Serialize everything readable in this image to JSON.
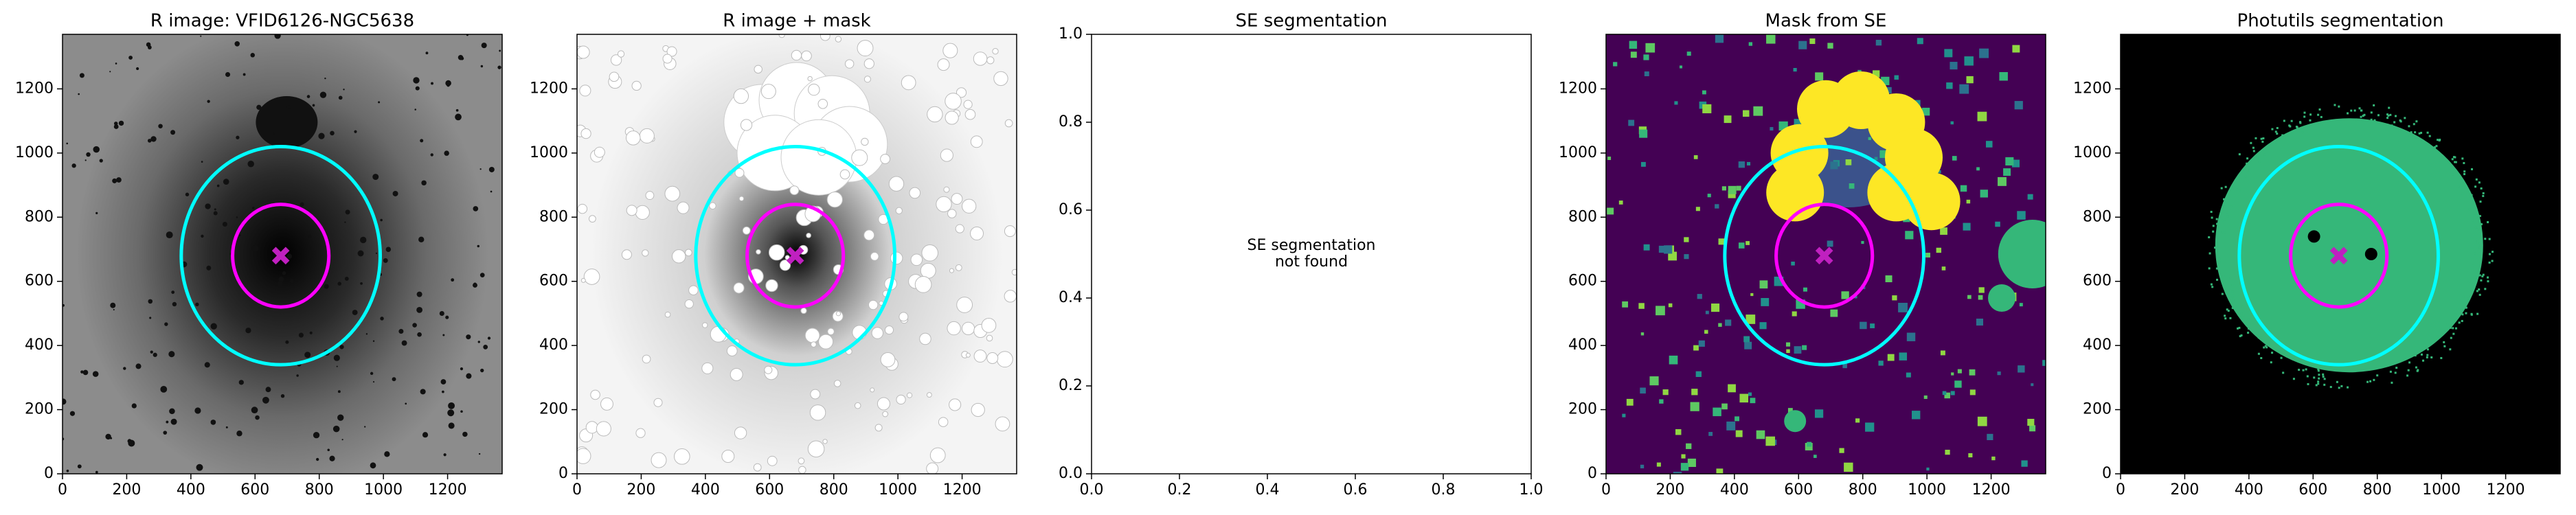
{
  "chart_data": [
    {
      "type": "image",
      "title": "R image: VFID6126-NGC5638",
      "xlim": [
        0,
        1370
      ],
      "ylim": [
        0,
        1370
      ],
      "xticks": [
        0,
        200,
        400,
        600,
        800,
        1000,
        1200
      ],
      "yticks": [
        0,
        200,
        400,
        600,
        800,
        1000,
        1200
      ],
      "ellipses": [
        {
          "color": "#00ffff",
          "cx": 680,
          "cy": 680,
          "rx": 310,
          "ry": 340
        },
        {
          "color": "#ff00ff",
          "cx": 680,
          "cy": 680,
          "rx": 150,
          "ry": 160
        }
      ],
      "marker": {
        "x": 680,
        "y": 680,
        "color": "#c020c0"
      }
    },
    {
      "type": "image",
      "title": "R image + mask",
      "xlim": [
        0,
        1370
      ],
      "ylim": [
        0,
        1370
      ],
      "xticks": [
        0,
        200,
        400,
        600,
        800,
        1000,
        1200
      ],
      "yticks": [
        0,
        200,
        400,
        600,
        800,
        1000,
        1200
      ],
      "ellipses": [
        {
          "color": "#00ffff",
          "cx": 680,
          "cy": 680,
          "rx": 310,
          "ry": 340
        },
        {
          "color": "#ff00ff",
          "cx": 680,
          "cy": 680,
          "rx": 150,
          "ry": 160
        }
      ],
      "marker": {
        "x": 680,
        "y": 680,
        "color": "#c020c0"
      }
    },
    {
      "type": "empty",
      "title": "SE segmentation",
      "annotation": [
        "SE segmentation",
        "not found"
      ],
      "xlim": [
        0,
        1
      ],
      "ylim": [
        0,
        1
      ],
      "xticks": [
        {
          "value": 0,
          "label": "0.0"
        },
        {
          "value": 0.2,
          "label": "0.2"
        },
        {
          "value": 0.4,
          "label": "0.4"
        },
        {
          "value": 0.6,
          "label": "0.6"
        },
        {
          "value": 0.8,
          "label": "0.8"
        },
        {
          "value": 1,
          "label": "1.0"
        }
      ],
      "yticks": [
        {
          "value": 0,
          "label": "0.0"
        },
        {
          "value": 0.2,
          "label": "0.2"
        },
        {
          "value": 0.4,
          "label": "0.4"
        },
        {
          "value": 0.6,
          "label": "0.6"
        },
        {
          "value": 0.8,
          "label": "0.8"
        },
        {
          "value": 1,
          "label": "1.0"
        }
      ]
    },
    {
      "type": "image",
      "title": "Mask from SE",
      "xlim": [
        0,
        1370
      ],
      "ylim": [
        0,
        1370
      ],
      "xticks": [
        0,
        200,
        400,
        600,
        800,
        1000,
        1200
      ],
      "yticks": [
        0,
        200,
        400,
        600,
        800,
        1000,
        1200
      ],
      "ellipses": [
        {
          "color": "#00ffff",
          "cx": 680,
          "cy": 680,
          "rx": 310,
          "ry": 340
        },
        {
          "color": "#ff00ff",
          "cx": 680,
          "cy": 680,
          "rx": 150,
          "ry": 160
        }
      ],
      "marker": {
        "x": 680,
        "y": 680,
        "color": "#c020c0"
      }
    },
    {
      "type": "image",
      "title": "Photutils segmentation",
      "xlim": [
        0,
        1370
      ],
      "ylim": [
        0,
        1370
      ],
      "xticks": [
        0,
        200,
        400,
        600,
        800,
        1000,
        1200
      ],
      "yticks": [
        0,
        200,
        400,
        600,
        800,
        1000,
        1200
      ],
      "ellipses": [
        {
          "color": "#00ffff",
          "cx": 680,
          "cy": 680,
          "rx": 310,
          "ry": 340
        },
        {
          "color": "#ff00ff",
          "cx": 680,
          "cy": 680,
          "rx": 150,
          "ry": 160
        }
      ],
      "marker": {
        "x": 680,
        "y": 680,
        "color": "#c020c0"
      }
    }
  ]
}
